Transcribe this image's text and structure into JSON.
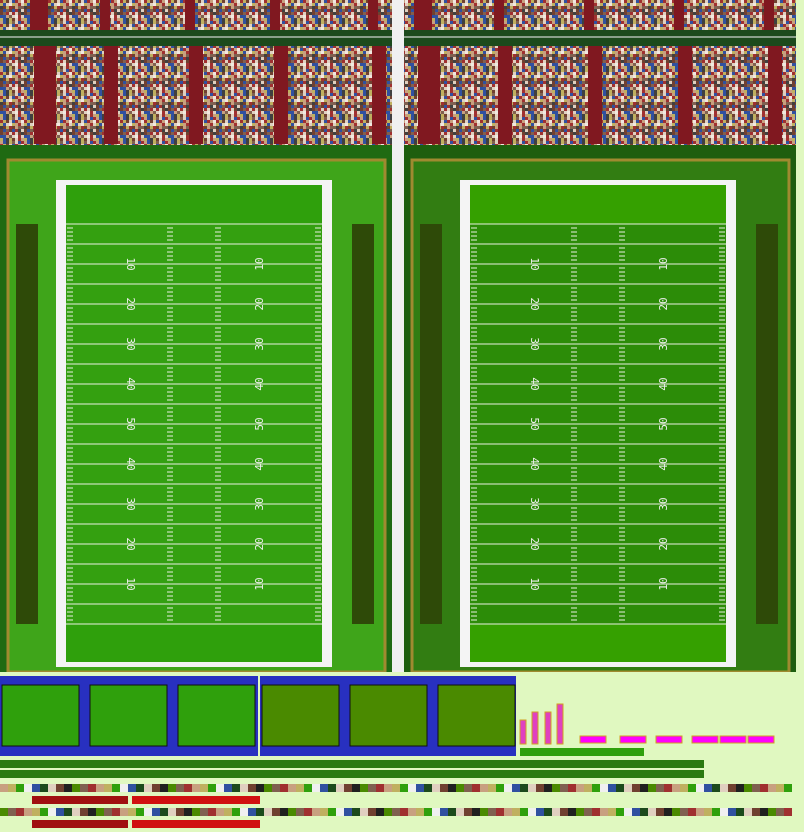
{
  "yard_labels": [
    "10",
    "20",
    "30",
    "40",
    "50",
    "40",
    "30",
    "20",
    "10"
  ]
}
